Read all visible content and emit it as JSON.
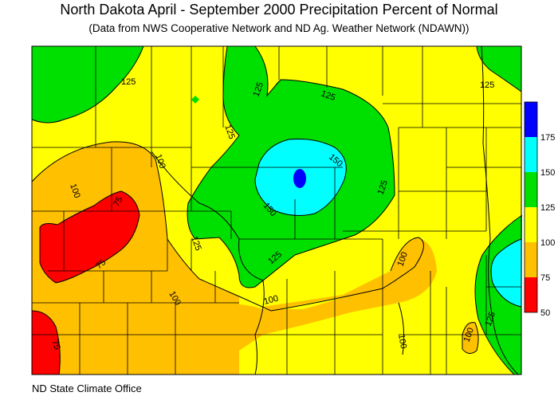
{
  "title": "North Dakota April - September 2000 Precipitation Percent of Normal",
  "subtitle": "(Data from NWS Cooperative Network and ND Ag. Weather Network (NDAWN))",
  "credit": "ND State Climate Office",
  "legend": {
    "bins": [
      {
        "label": "50",
        "color": "#ff0000"
      },
      {
        "label": "75",
        "color": "#ffc000"
      },
      {
        "label": "100",
        "color": "#ffff00"
      },
      {
        "label": "125",
        "color": "#00e000"
      },
      {
        "label": "150",
        "color": "#00ffff"
      },
      {
        "label": "175",
        "color": "#0000ff"
      }
    ],
    "ticks": [
      "175",
      "150",
      "125",
      "100",
      "75",
      "50"
    ]
  },
  "contour_labels": [
    "125",
    "125",
    "125",
    "125",
    "125",
    "150",
    "150",
    "125",
    "100",
    "100",
    "75",
    "75",
    "100",
    "125",
    "125",
    "100",
    "100",
    "100",
    "125",
    "100",
    "75"
  ]
}
